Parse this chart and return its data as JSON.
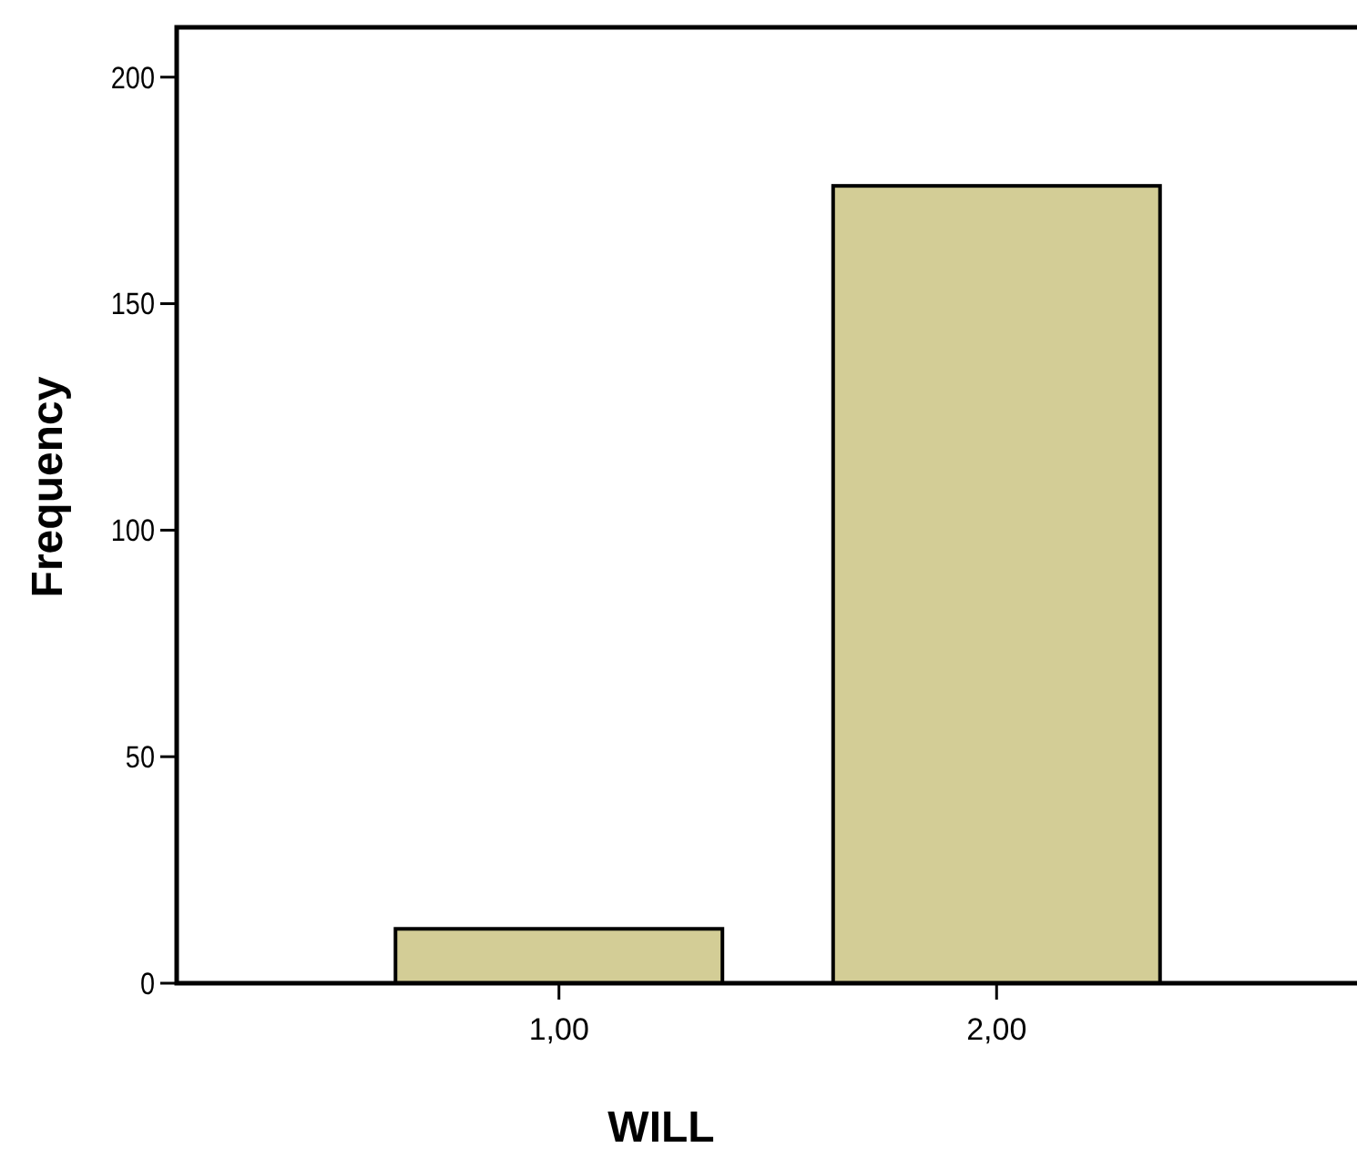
{
  "chart_data": {
    "type": "bar",
    "xlabel": "WILL",
    "ylabel": "Frequency",
    "categories": [
      "1,00",
      "2,00"
    ],
    "values": [
      12,
      176
    ],
    "color": "#d3cd96",
    "ylim": [
      0,
      211
    ],
    "yticks": [
      0,
      50,
      100,
      150,
      200
    ],
    "grid": false
  }
}
